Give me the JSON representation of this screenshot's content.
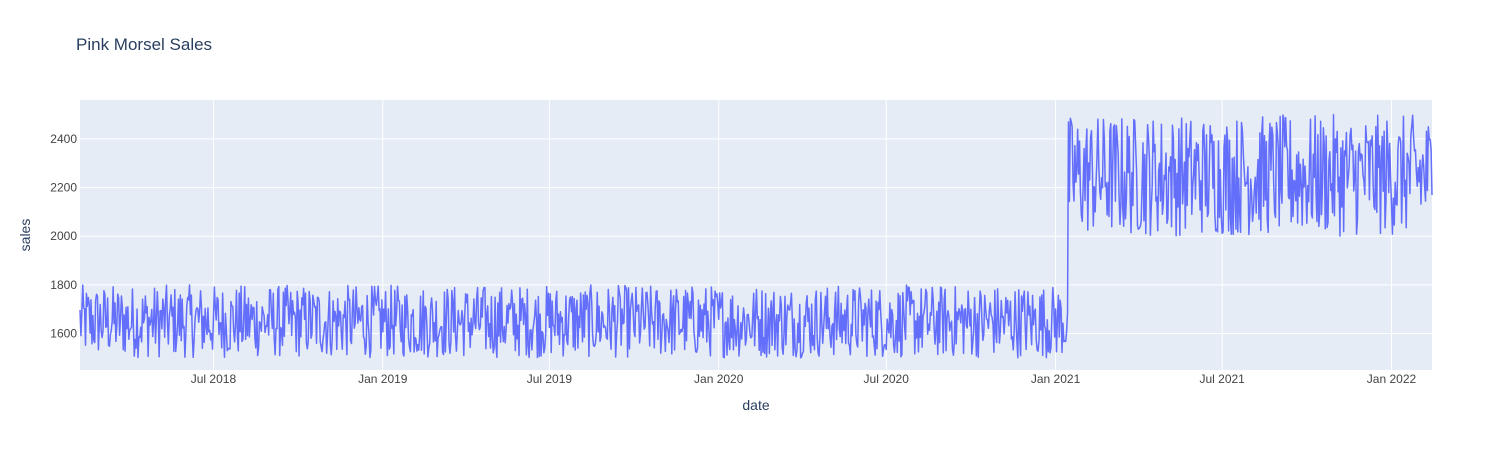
{
  "chart_data": {
    "type": "line",
    "title": "Pink Morsel Sales",
    "xlabel": "date",
    "ylabel": "sales",
    "x_range": [
      "2018-02-06",
      "2022-02-14"
    ],
    "ylim": [
      1450,
      2560
    ],
    "grid": true,
    "legend": "none",
    "x_ticks": [
      {
        "date": "2018-07-01",
        "label": "Jul 2018"
      },
      {
        "date": "2019-01-01",
        "label": "Jan 2019"
      },
      {
        "date": "2019-07-01",
        "label": "Jul 2019"
      },
      {
        "date": "2020-01-01",
        "label": "Jan 2020"
      },
      {
        "date": "2020-07-01",
        "label": "Jul 2020"
      },
      {
        "date": "2021-01-01",
        "label": "Jan 2021"
      },
      {
        "date": "2021-07-01",
        "label": "Jul 2021"
      },
      {
        "date": "2022-01-01",
        "label": "Jan 2022"
      }
    ],
    "y_ticks": [
      1600,
      1800,
      2000,
      2200,
      2400
    ],
    "series": [
      {
        "color": "#636efa",
        "segments": [
          {
            "start": "2018-02-06",
            "end": "2021-01-14",
            "min": 1500,
            "max": 1800
          },
          {
            "start": "2021-01-15",
            "end": "2022-02-14",
            "min": 2000,
            "max": 2500
          }
        ]
      }
    ],
    "colors": {
      "plot_background": "#e5ecf6",
      "grid": "#ffffff",
      "text": "#2a3f5f",
      "tick_text": "#444444"
    }
  }
}
